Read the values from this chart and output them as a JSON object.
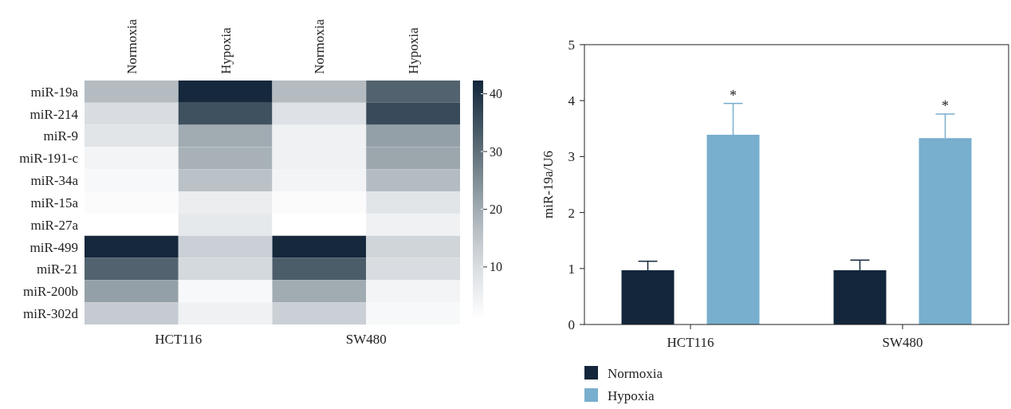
{
  "chart_data": [
    {
      "type": "heatmap",
      "categories": [
        "Normoxia",
        "Hypoxia",
        "Normoxia",
        "Hypoxia"
      ],
      "y_categories": [
        "miR-19a",
        "miR-214",
        "miR-9",
        "miR-191-c",
        "miR-34a",
        "miR-15a",
        "miR-27a",
        "miR-499",
        "miR-21",
        "miR-200b",
        "miR-302d"
      ],
      "cells": [
        [
          17,
          42,
          17,
          32
        ],
        [
          10,
          35,
          9,
          36
        ],
        [
          8,
          20,
          5,
          22
        ],
        [
          4,
          19,
          5,
          21
        ],
        [
          3,
          16,
          4,
          17
        ],
        [
          2,
          6,
          2,
          8
        ],
        [
          1,
          7,
          1,
          5
        ],
        [
          42,
          13,
          42,
          12
        ],
        [
          32,
          11,
          33,
          10
        ],
        [
          22,
          3,
          20,
          4
        ],
        [
          14,
          5,
          13,
          3
        ]
      ],
      "clim": [
        1,
        42.3
      ],
      "cticks": [
        10,
        20,
        30,
        40
      ],
      "annotations": [
        "HCT116",
        "SW480"
      ]
    },
    {
      "type": "bar",
      "categories": [
        "HCT116",
        "SW480"
      ],
      "series": [
        {
          "name": "Normoxia",
          "color": "#13263b",
          "values": [
            0.97,
            0.97
          ],
          "errors": [
            [
              0.97,
              1.13
            ],
            [
              0.97,
              1.15
            ]
          ]
        },
        {
          "name": "Hypoxia",
          "color": "#78aece",
          "values": [
            3.39,
            3.33
          ],
          "errors": [
            [
              3.39,
              3.95
            ],
            [
              3.33,
              3.76
            ]
          ]
        }
      ],
      "ylabel": "miR-19a/U6",
      "ylim": [
        0,
        5
      ],
      "yticks": [
        0,
        1,
        2,
        3,
        4,
        5
      ],
      "grid": false,
      "legend": "bottom left",
      "annotations": [
        "*",
        "*"
      ]
    }
  ]
}
